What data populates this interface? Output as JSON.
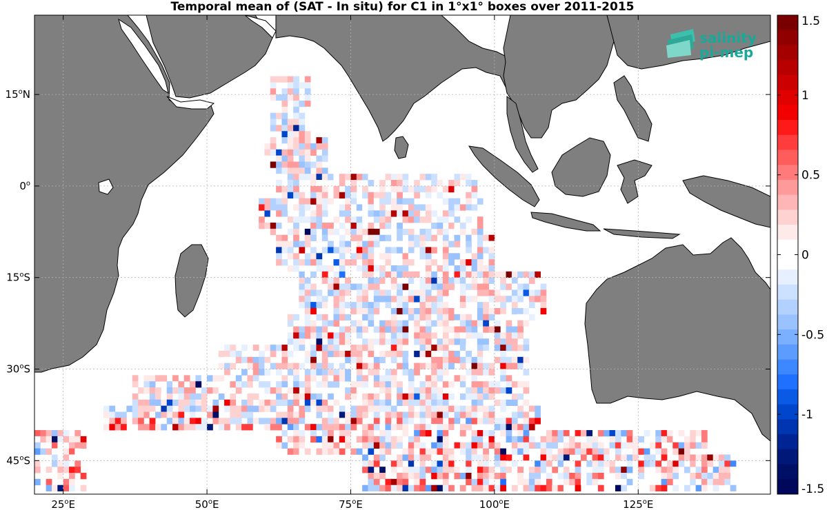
{
  "title": "Temporal mean of (SAT - In situ) for C1 in 1°x1° boxes over 2011-2015",
  "logo": {
    "line1": "salinity",
    "line2": "pi-mep",
    "color": "#1aa89a",
    "icon": "layered-waves-icon"
  },
  "axes": {
    "x_ticks": [
      {
        "value": 25,
        "label_num": "25",
        "label_sup": "o",
        "label_dir": "E"
      },
      {
        "value": 50,
        "label_num": "50",
        "label_sup": "o",
        "label_dir": "E"
      },
      {
        "value": 75,
        "label_num": "75",
        "label_sup": "o",
        "label_dir": "E"
      },
      {
        "value": 100,
        "label_num": "100",
        "label_sup": "o",
        "label_dir": "E"
      },
      {
        "value": 125,
        "label_num": "125",
        "label_sup": "o",
        "label_dir": "E"
      }
    ],
    "y_ticks": [
      {
        "value": 15,
        "label_num": "15",
        "label_sup": "o",
        "label_dir": "N"
      },
      {
        "value": 0,
        "label_num": "0",
        "label_sup": "o",
        "label_dir": ""
      },
      {
        "value": -15,
        "label_num": "15",
        "label_sup": "o",
        "label_dir": "S"
      },
      {
        "value": -30,
        "label_num": "30",
        "label_sup": "o",
        "label_dir": "S"
      },
      {
        "value": -45,
        "label_num": "45",
        "label_sup": "o",
        "label_dir": "S"
      }
    ],
    "lon_range": [
      20,
      148
    ],
    "lat_range": [
      -50.5,
      28
    ],
    "grid": true
  },
  "colorbar": {
    "range": [
      -1.5,
      1.5
    ],
    "ticks": [
      {
        "value": 1.5,
        "label": "1.5"
      },
      {
        "value": 1,
        "label": "1"
      },
      {
        "value": 0.5,
        "label": "0.5"
      },
      {
        "value": 0,
        "label": "0"
      },
      {
        "value": -0.5,
        "label": "-0.5"
      },
      {
        "value": -1,
        "label": "-1"
      },
      {
        "value": -1.5,
        "label": "-1.5"
      }
    ],
    "colors_top_to_bottom": [
      "#7a0000",
      "#900000",
      "#a40000",
      "#b80000",
      "#cc0000",
      "#e00000",
      "#f20000",
      "#ff1a1a",
      "#ff3d3d",
      "#ff5c5c",
      "#ff7a7a",
      "#ff9a9a",
      "#ffb6b6",
      "#ffd2d2",
      "#ffeaea",
      "#ffffff",
      "#ffffff",
      "#e6f0ff",
      "#cce0ff",
      "#b3d1ff",
      "#99c2ff",
      "#7ab0ff",
      "#5c9cff",
      "#3d87ff",
      "#1f70ff",
      "#0a5ae6",
      "#0046cc",
      "#0035b0",
      "#002494",
      "#001878",
      "#000f66",
      "#00085c"
    ]
  },
  "map": {
    "land_color": "#7f7f7f",
    "land_edge": "#000000",
    "ocean_color": "#ffffff",
    "features": [
      "Africa",
      "Madagascar",
      "Arabian Peninsula",
      "India",
      "Sri Lanka",
      "Southeast Asia",
      "Sumatra",
      "Java",
      "Borneo",
      "Sulawesi",
      "New Guinea",
      "Australia",
      "Red Sea",
      "Persian Gulf"
    ]
  }
}
